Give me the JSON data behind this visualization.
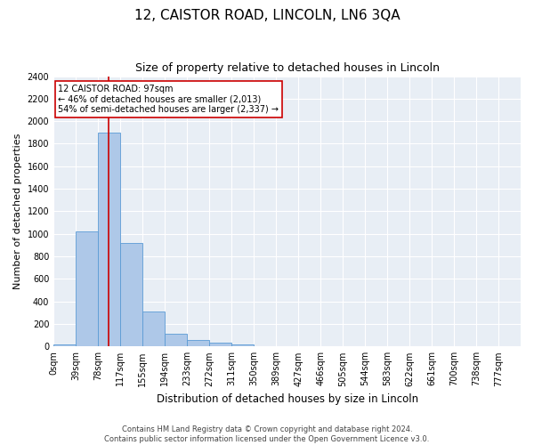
{
  "title": "12, CAISTOR ROAD, LINCOLN, LN6 3QA",
  "subtitle": "Size of property relative to detached houses in Lincoln",
  "xlabel": "Distribution of detached houses by size in Lincoln",
  "ylabel": "Number of detached properties",
  "bin_labels": [
    "0sqm",
    "39sqm",
    "78sqm",
    "117sqm",
    "155sqm",
    "194sqm",
    "233sqm",
    "272sqm",
    "311sqm",
    "350sqm",
    "389sqm",
    "427sqm",
    "466sqm",
    "505sqm",
    "544sqm",
    "583sqm",
    "622sqm",
    "661sqm",
    "700sqm",
    "738sqm",
    "777sqm"
  ],
  "bar_values": [
    20,
    1020,
    1900,
    920,
    310,
    110,
    55,
    35,
    20,
    0,
    0,
    0,
    0,
    0,
    0,
    0,
    0,
    0,
    0,
    0,
    0
  ],
  "bar_color": "#aec8e8",
  "bar_edge_color": "#5b9bd5",
  "ylim": [
    0,
    2400
  ],
  "yticks": [
    0,
    200,
    400,
    600,
    800,
    1000,
    1200,
    1400,
    1600,
    1800,
    2000,
    2200,
    2400
  ],
  "property_size": 97,
  "bin_width": 39,
  "red_line_color": "#cc0000",
  "annotation_text": "12 CAISTOR ROAD: 97sqm\n← 46% of detached houses are smaller (2,013)\n54% of semi-detached houses are larger (2,337) →",
  "annotation_box_color": "#cc0000",
  "background_color": "#e8eef5",
  "grid_color": "#ffffff",
  "footer_text": "Contains HM Land Registry data © Crown copyright and database right 2024.\nContains public sector information licensed under the Open Government Licence v3.0.",
  "title_fontsize": 11,
  "subtitle_fontsize": 9,
  "ylabel_fontsize": 8,
  "xlabel_fontsize": 8.5,
  "tick_fontsize": 7,
  "annotation_fontsize": 7,
  "footer_fontsize": 6
}
